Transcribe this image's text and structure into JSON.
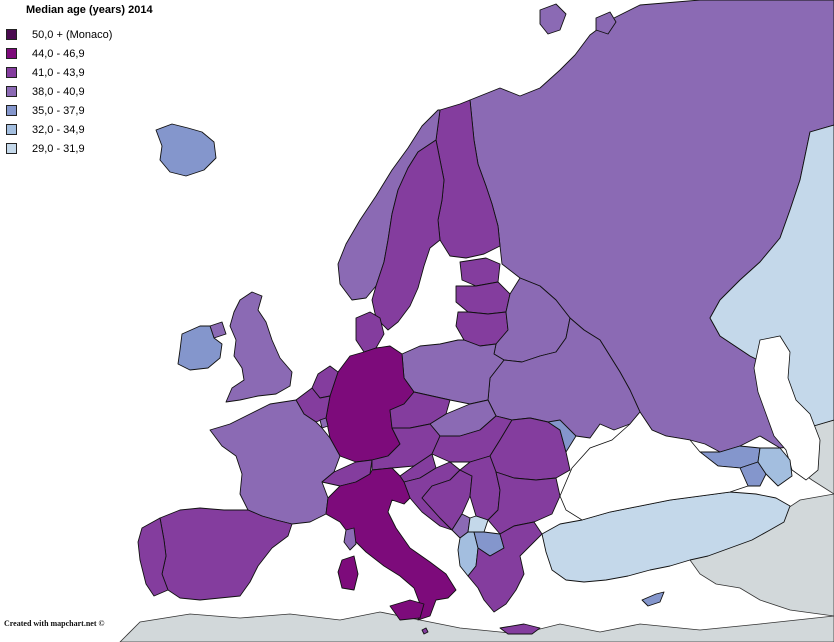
{
  "title": "Median age (years) 2014",
  "credit": "Created with mapchart.net ©",
  "colors": {
    "c50": "#4a0b50",
    "c44": "#7d0b7b",
    "c41": "#843d9e",
    "c38": "#8b6ab4",
    "c35": "#8496cc",
    "c32": "#a3bedf",
    "c29": "#c4d8ea",
    "outside": "#d2d8da",
    "sea": "#ffffff"
  },
  "legend": [
    {
      "label": "50,0 + (Monaco)",
      "color_key": "c50"
    },
    {
      "label": "44,0 - 46,9",
      "color_key": "c44"
    },
    {
      "label": "41,0 - 43,9",
      "color_key": "c41"
    },
    {
      "label": "38,0 - 40,9",
      "color_key": "c38"
    },
    {
      "label": "35,0 - 37,9",
      "color_key": "c35"
    },
    {
      "label": "32,0 - 34,9",
      "color_key": "c32"
    },
    {
      "label": "29,0 - 31,9",
      "color_key": "c29"
    }
  ],
  "countries": [
    {
      "name": "Iceland",
      "color_key": "c35"
    },
    {
      "name": "Ireland",
      "color_key": "c35"
    },
    {
      "name": "United Kingdom",
      "color_key": "c38"
    },
    {
      "name": "Norway",
      "color_key": "c38"
    },
    {
      "name": "Sweden",
      "color_key": "c41"
    },
    {
      "name": "Finland",
      "color_key": "c41"
    },
    {
      "name": "Denmark",
      "color_key": "c41"
    },
    {
      "name": "Estonia",
      "color_key": "c41"
    },
    {
      "name": "Latvia",
      "color_key": "c41"
    },
    {
      "name": "Lithuania",
      "color_key": "c41"
    },
    {
      "name": "Russia",
      "color_key": "c38"
    },
    {
      "name": "Belarus",
      "color_key": "c38"
    },
    {
      "name": "Ukraine",
      "color_key": "c38"
    },
    {
      "name": "Poland",
      "color_key": "c38"
    },
    {
      "name": "Germany",
      "color_key": "c44"
    },
    {
      "name": "Netherlands",
      "color_key": "c41"
    },
    {
      "name": "Belgium",
      "color_key": "c41"
    },
    {
      "name": "Luxembourg",
      "color_key": "c38"
    },
    {
      "name": "France",
      "color_key": "c38"
    },
    {
      "name": "Switzerland",
      "color_key": "c41"
    },
    {
      "name": "Austria",
      "color_key": "c41"
    },
    {
      "name": "Czech Republic",
      "color_key": "c41"
    },
    {
      "name": "Slovakia",
      "color_key": "c38"
    },
    {
      "name": "Hungary",
      "color_key": "c41"
    },
    {
      "name": "Slovenia",
      "color_key": "c41"
    },
    {
      "name": "Croatia",
      "color_key": "c41"
    },
    {
      "name": "Bosnia and Herzegovina",
      "color_key": "c41"
    },
    {
      "name": "Serbia",
      "color_key": "c41"
    },
    {
      "name": "Montenegro",
      "color_key": "c38"
    },
    {
      "name": "Kosovo",
      "color_key": "c29"
    },
    {
      "name": "Albania",
      "color_key": "c32"
    },
    {
      "name": "North Macedonia",
      "color_key": "c35"
    },
    {
      "name": "Greece",
      "color_key": "c41"
    },
    {
      "name": "Bulgaria",
      "color_key": "c41"
    },
    {
      "name": "Romania",
      "color_key": "c41"
    },
    {
      "name": "Moldova",
      "color_key": "c35"
    },
    {
      "name": "Italy",
      "color_key": "c44"
    },
    {
      "name": "Spain",
      "color_key": "c41"
    },
    {
      "name": "Portugal",
      "color_key": "c41"
    },
    {
      "name": "Turkey",
      "color_key": "c29"
    },
    {
      "name": "Cyprus",
      "color_key": "c35"
    },
    {
      "name": "Georgia",
      "color_key": "c35"
    },
    {
      "name": "Armenia",
      "color_key": "c35"
    },
    {
      "name": "Azerbaijan",
      "color_key": "c32"
    },
    {
      "name": "Kazakhstan",
      "color_key": "c29"
    },
    {
      "name": "Malta",
      "color_key": "c41"
    }
  ]
}
